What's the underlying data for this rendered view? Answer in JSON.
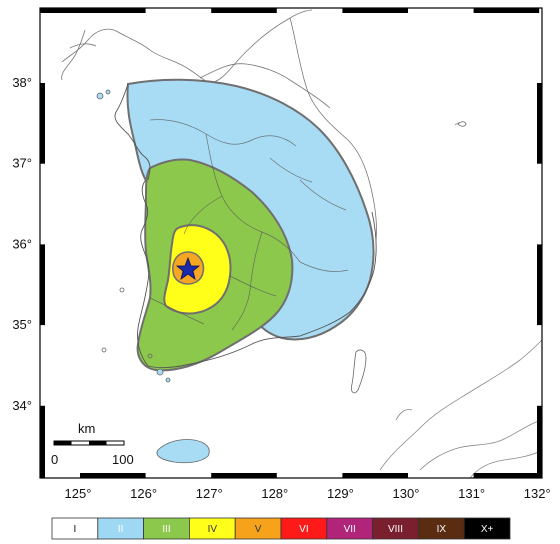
{
  "map": {
    "longitude_ticks": [
      "125°",
      "126°",
      "127°",
      "128°",
      "129°",
      "130°",
      "131°",
      "132°"
    ],
    "latitude_ticks": [
      "38°",
      "37°",
      "36°",
      "35°",
      "34°"
    ],
    "scale_bar": {
      "unit": "km",
      "start": "0",
      "end": "100"
    },
    "epicenter": "star-icon",
    "intensity_zones": [
      {
        "level": "II",
        "color": "#a8dcf4"
      },
      {
        "level": "III",
        "color": "#8cc84b"
      },
      {
        "level": "IV",
        "color": "#ffff1a"
      },
      {
        "level": "V",
        "color": "#f5a623"
      }
    ]
  },
  "legend": {
    "items": [
      {
        "label": "I",
        "color": "#ffffff",
        "text_color": "#111111"
      },
      {
        "label": "II",
        "color": "#9fd8f3",
        "text_color": "#ffffff"
      },
      {
        "label": "III",
        "color": "#8cc84b",
        "text_color": "#ffffff"
      },
      {
        "label": "IV",
        "color": "#ffff1a",
        "text_color": "#333333"
      },
      {
        "label": "V",
        "color": "#f7a21b",
        "text_color": "#333333"
      },
      {
        "label": "VI",
        "color": "#ff1a1a",
        "text_color": "#ffffff"
      },
      {
        "label": "VII",
        "color": "#b0247a",
        "text_color": "#ffffff"
      },
      {
        "label": "VIII",
        "color": "#7a1f2e",
        "text_color": "#ffffff"
      },
      {
        "label": "IX",
        "color": "#5a2d12",
        "text_color": "#ffffff"
      },
      {
        "label": "X+",
        "color": "#000000",
        "text_color": "#ffffff"
      }
    ]
  }
}
